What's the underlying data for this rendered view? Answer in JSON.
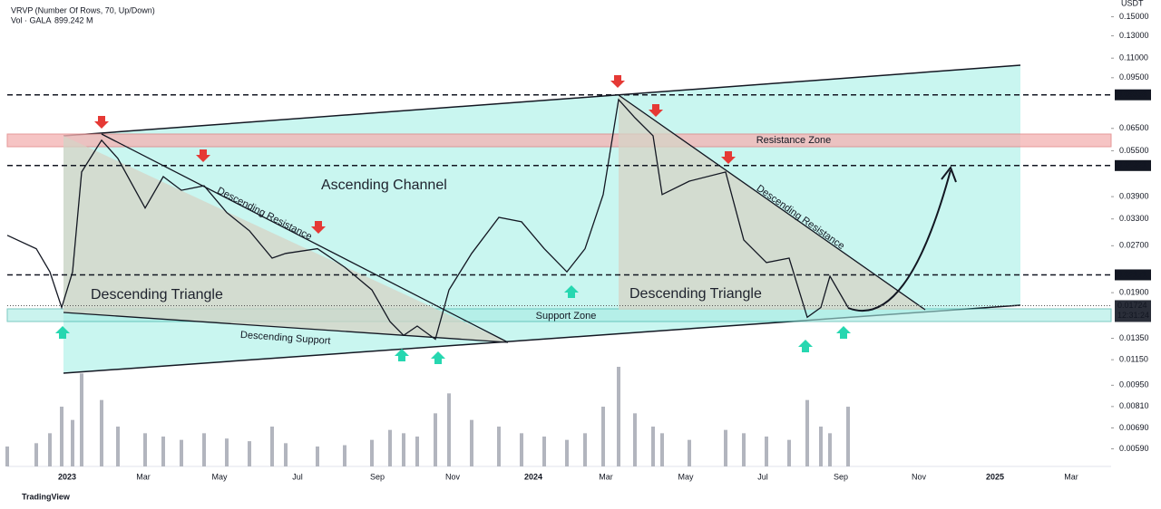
{
  "chart_data": {
    "type": "line",
    "legend": [
      "VRVP (Number Of Rows, 70, Up/Down)",
      "Vol · GALA",
      "899.242 M"
    ],
    "currency": "USDT",
    "log_scale": true,
    "ylim": [
      0.005,
      0.17
    ],
    "yticks": [
      {
        "value": 0.15,
        "label": "0.15000"
      },
      {
        "value": 0.13,
        "label": "0.13000"
      },
      {
        "value": 0.11,
        "label": "0.11000"
      },
      {
        "value": 0.095,
        "label": "0.09500"
      },
      {
        "value": 0.065,
        "label": "0.06500"
      },
      {
        "value": 0.055,
        "label": "0.05500"
      },
      {
        "value": 0.039,
        "label": "0.03900"
      },
      {
        "value": 0.033,
        "label": "0.03300"
      },
      {
        "value": 0.027,
        "label": "0.02700"
      },
      {
        "value": 0.019,
        "label": "0.01900"
      },
      {
        "value": 0.0135,
        "label": "0.01350"
      },
      {
        "value": 0.0115,
        "label": "0.01150"
      },
      {
        "value": 0.0095,
        "label": "0.00950"
      },
      {
        "value": 0.0081,
        "label": "0.00810"
      },
      {
        "value": 0.0069,
        "label": "0.00690"
      },
      {
        "value": 0.0059,
        "label": "0.00590"
      }
    ],
    "price_levels": [
      {
        "value": 0.08358,
        "label": "0.08358"
      },
      {
        "value": 0.04921,
        "label": "0.04921"
      },
      {
        "value": 0.02171,
        "label": "0.02171"
      }
    ],
    "last_price": {
      "value": 0.01724,
      "label": "0.01724"
    },
    "countdown": "12:31:24",
    "xticks": [
      "2023",
      "Mar",
      "May",
      "Jul",
      "Sep",
      "Nov",
      "2024",
      "Mar",
      "May",
      "Jul",
      "Sep",
      "Nov",
      "2025",
      "Mar"
    ],
    "series": [
      {
        "name": "GALA",
        "color": "#131722",
        "values": [
          0.0292,
          0.0264,
          0.0222,
          0.017,
          0.0222,
          0.0469,
          0.0595,
          0.0519,
          0.0358,
          0.0453,
          0.0409,
          0.0423,
          0.0346,
          0.0302,
          0.0246,
          0.0255,
          0.0264,
          0.023,
          0.0194,
          0.0153,
          0.0138,
          0.0148,
          0.0134,
          0.0194,
          0.0255,
          0.0334,
          0.0323,
          0.0264,
          0.0222,
          0.0264,
          0.0396,
          0.0806,
          0.0704,
          0.0615,
          0.0396,
          0.0438,
          0.0469,
          0.0282,
          0.0238,
          0.0246,
          0.0158,
          0.017,
          0.0215,
          0.017
        ]
      }
    ],
    "volume": {
      "color": "#b2b5be",
      "values": [
        300,
        350,
        500,
        900,
        700,
        1400,
        1000,
        600,
        500,
        450,
        400,
        500,
        420,
        380,
        600,
        350,
        300,
        320,
        400,
        550,
        500,
        450,
        800,
        1100,
        700,
        600,
        500,
        450,
        400,
        500,
        900,
        1500,
        800,
        600,
        500,
        400,
        550,
        500,
        450,
        400,
        1000,
        600,
        500,
        899.242
      ]
    },
    "annotations": {
      "ascending_channel": "Ascending Channel",
      "triangle_left": "Descending Triangle",
      "triangle_right": "Descending Triangle",
      "resistance_left": "Descending Resistance",
      "resistance_right": "Descending Resistance",
      "support": "Descending Support",
      "resistance_zone": "Resistance Zone",
      "support_zone": "Support Zone"
    },
    "branding": "TradingView"
  }
}
